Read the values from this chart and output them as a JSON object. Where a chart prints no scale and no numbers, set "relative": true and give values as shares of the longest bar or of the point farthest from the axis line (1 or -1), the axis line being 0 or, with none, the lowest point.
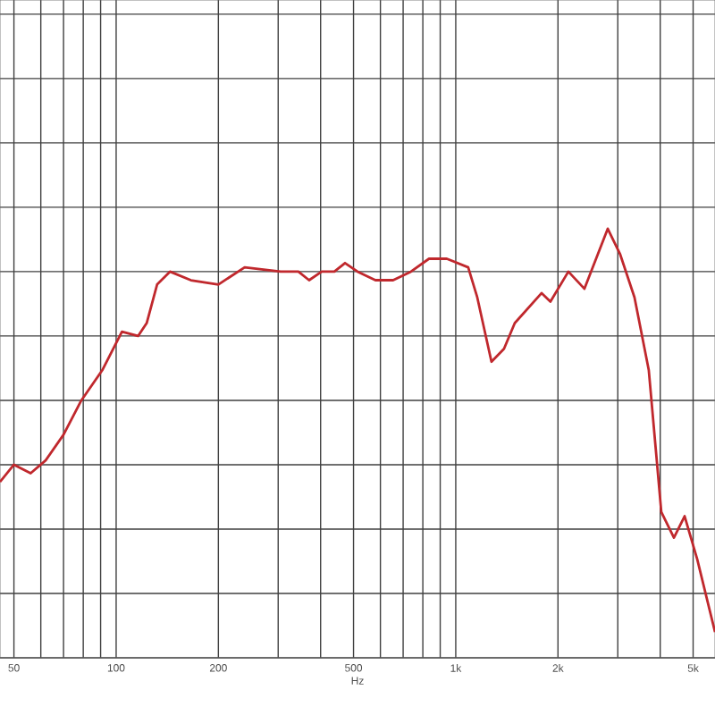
{
  "chart_data": {
    "type": "line",
    "xlabel": "Hz",
    "log": "x",
    "relative": true,
    "grid": true,
    "xlim": [
      45.5,
      5800
    ],
    "xticks": [
      50,
      {
        "value": 60,
        "label": null
      },
      {
        "value": 70,
        "label": null
      },
      {
        "value": 80,
        "label": null
      },
      {
        "value": 90,
        "label": null
      },
      100,
      200,
      {
        "value": 300,
        "label": null
      },
      {
        "value": 400,
        "label": null
      },
      500,
      {
        "value": 600,
        "label": null
      },
      {
        "value": 700,
        "label": null
      },
      {
        "value": 800,
        "label": null
      },
      {
        "value": 900,
        "label": null
      },
      {
        "value": 1000,
        "label": "1k"
      },
      {
        "value": 2000,
        "label": "2k"
      },
      {
        "value": 3000,
        "label": null
      },
      {
        "value": 4000,
        "label": null
      },
      {
        "value": 5000,
        "label": "5k"
      }
    ],
    "series": [
      {
        "color": "#c0282d",
        "x": [
          45.5,
          50,
          56,
          62,
          70,
          79,
          91,
          104,
          116,
          123,
          132,
          144,
          166,
          200,
          239,
          305,
          344,
          370,
          403,
          439,
          472,
          514,
          580,
          654,
          738,
          834,
          941,
          1088,
          1157,
          1274,
          1387,
          1492,
          1790,
          1900,
          2146,
          2393,
          2802,
          3050,
          3360,
          3702,
          4030,
          4390,
          4720,
          5140,
          5800
        ],
        "values": [
          0.41,
          0.45,
          0.43,
          0.46,
          0.52,
          0.6,
          0.67,
          0.76,
          0.75,
          0.78,
          0.87,
          0.9,
          0.88,
          0.87,
          0.91,
          0.9,
          0.9,
          0.88,
          0.9,
          0.9,
          0.92,
          0.9,
          0.88,
          0.88,
          0.9,
          0.93,
          0.93,
          0.91,
          0.84,
          0.69,
          0.72,
          0.78,
          0.85,
          0.83,
          0.9,
          0.86,
          1,
          0.94,
          0.84,
          0.67,
          0.34,
          0.28,
          0.33,
          0.23,
          0.06
        ]
      }
    ]
  }
}
